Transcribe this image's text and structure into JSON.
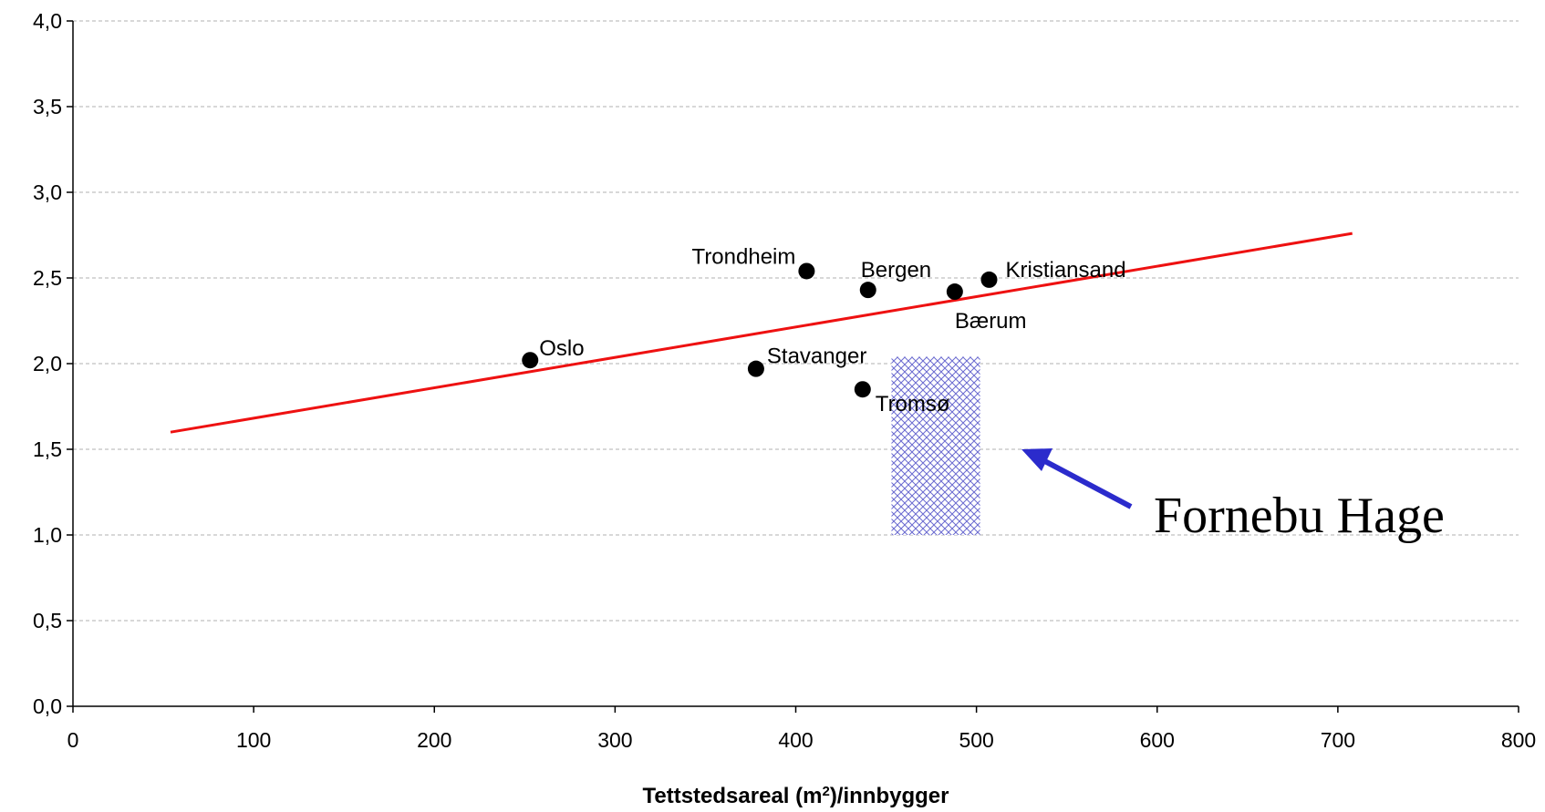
{
  "chart_data": {
    "type": "scatter",
    "xlabel": "Tettstedsareal (m²)/innbygger",
    "xlabel_main": "Tettstedsareal (m",
    "xlabel_sup": "2",
    "xlabel_rest": ")/innbygger",
    "ylabel": "",
    "xlim": [
      0,
      800
    ],
    "ylim": [
      0,
      4.0
    ],
    "x_ticks": [
      "0",
      "100",
      "200",
      "300",
      "400",
      "500",
      "600",
      "700",
      "800"
    ],
    "y_ticks": [
      "0,0",
      "0,5",
      "1,0",
      "1,5",
      "2,0",
      "2,5",
      "3,0",
      "3,5",
      "4,0"
    ],
    "grid": "horizontal dashed",
    "points": [
      {
        "label": "Oslo",
        "x": 253,
        "y": 2.02
      },
      {
        "label": "Stavanger",
        "x": 378,
        "y": 1.97
      },
      {
        "label": "Trondheim",
        "x": 406,
        "y": 2.54
      },
      {
        "label": "Tromsø",
        "x": 437,
        "y": 1.85
      },
      {
        "label": "Bergen",
        "x": 440,
        "y": 2.43
      },
      {
        "label": "Bærum",
        "x": 488,
        "y": 2.42
      },
      {
        "label": "Kristiansand",
        "x": 507,
        "y": 2.49
      }
    ],
    "trendline": {
      "x": [
        54,
        708
      ],
      "y": [
        1.6,
        2.76
      ],
      "color": "#ee1111"
    },
    "highlight_region": {
      "x": [
        453,
        502
      ],
      "y": [
        1.0,
        2.04
      ],
      "color": "#6666cc"
    },
    "annotation": {
      "text": "Fornebu Hage",
      "arrow_color": "#2b2bcc"
    },
    "marker_color": "#000000"
  }
}
